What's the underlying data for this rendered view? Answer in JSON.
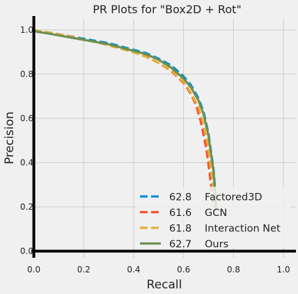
{
  "chart_data": {
    "type": "line",
    "title": "PR Plots for \"Box2D + Rot\"",
    "xlabel": "Recall",
    "ylabel": "Precision",
    "xlim": [
      -0.01,
      1.05
    ],
    "ylim": [
      -0.03,
      1.05
    ],
    "xticks": [
      "0.0",
      "0.2",
      "0.4",
      "0.6",
      "0.8",
      "1.0"
    ],
    "yticks": [
      "0.0",
      "0.2",
      "0.4",
      "0.6",
      "0.8",
      "1.0"
    ],
    "grid": true,
    "legend_position": "bottom-right",
    "series": [
      {
        "name": "Factored3D",
        "score": "62.8",
        "color": "#008fd5",
        "dash": "dashed",
        "points": [
          [
            0,
            0.995
          ],
          [
            0.02,
            0.99
          ],
          [
            0.05,
            0.99
          ],
          [
            0.1,
            0.98
          ],
          [
            0.15,
            0.97
          ],
          [
            0.2,
            0.96
          ],
          [
            0.25,
            0.95
          ],
          [
            0.3,
            0.94
          ],
          [
            0.35,
            0.925
          ],
          [
            0.4,
            0.91
          ],
          [
            0.45,
            0.895
          ],
          [
            0.5,
            0.87
          ],
          [
            0.55,
            0.84
          ],
          [
            0.6,
            0.79
          ],
          [
            0.63,
            0.75
          ],
          [
            0.66,
            0.69
          ],
          [
            0.68,
            0.63
          ],
          [
            0.7,
            0.53
          ],
          [
            0.71,
            0.45
          ],
          [
            0.72,
            0.37
          ],
          [
            0.725,
            0.3
          ],
          [
            0.73,
            0.2
          ]
        ]
      },
      {
        "name": "GCN",
        "score": "61.6",
        "color": "#fc4f30",
        "dash": "dashed",
        "points": [
          [
            0,
            0.998
          ],
          [
            0.02,
            0.995
          ],
          [
            0.05,
            0.99
          ],
          [
            0.1,
            0.98
          ],
          [
            0.15,
            0.97
          ],
          [
            0.2,
            0.955
          ],
          [
            0.25,
            0.945
          ],
          [
            0.3,
            0.93
          ],
          [
            0.35,
            0.915
          ],
          [
            0.4,
            0.9
          ],
          [
            0.45,
            0.88
          ],
          [
            0.5,
            0.85
          ],
          [
            0.55,
            0.815
          ],
          [
            0.6,
            0.76
          ],
          [
            0.63,
            0.71
          ],
          [
            0.65,
            0.66
          ],
          [
            0.67,
            0.58
          ],
          [
            0.69,
            0.47
          ],
          [
            0.7,
            0.39
          ],
          [
            0.71,
            0.3
          ],
          [
            0.72,
            0.2
          ]
        ]
      },
      {
        "name": "Interaction Net",
        "score": "61.8",
        "color": "#e5ae38",
        "dash": "dashed",
        "points": [
          [
            0,
            1.0
          ],
          [
            0.02,
            0.995
          ],
          [
            0.05,
            0.99
          ],
          [
            0.1,
            0.98
          ],
          [
            0.15,
            0.968
          ],
          [
            0.2,
            0.955
          ],
          [
            0.25,
            0.945
          ],
          [
            0.3,
            0.93
          ],
          [
            0.35,
            0.915
          ],
          [
            0.4,
            0.898
          ],
          [
            0.45,
            0.878
          ],
          [
            0.5,
            0.85
          ],
          [
            0.55,
            0.818
          ],
          [
            0.6,
            0.765
          ],
          [
            0.63,
            0.715
          ],
          [
            0.66,
            0.65
          ],
          [
            0.68,
            0.57
          ],
          [
            0.695,
            0.49
          ],
          [
            0.705,
            0.41
          ],
          [
            0.715,
            0.32
          ],
          [
            0.72,
            0.22
          ]
        ]
      },
      {
        "name": "Ours",
        "score": "62.7",
        "color": "#6d904f",
        "dash": "solid",
        "points": [
          [
            0,
            0.995
          ],
          [
            0.02,
            0.99
          ],
          [
            0.05,
            0.985
          ],
          [
            0.1,
            0.975
          ],
          [
            0.15,
            0.965
          ],
          [
            0.2,
            0.955
          ],
          [
            0.25,
            0.945
          ],
          [
            0.3,
            0.935
          ],
          [
            0.35,
            0.92
          ],
          [
            0.4,
            0.905
          ],
          [
            0.45,
            0.89
          ],
          [
            0.5,
            0.865
          ],
          [
            0.55,
            0.83
          ],
          [
            0.6,
            0.78
          ],
          [
            0.63,
            0.74
          ],
          [
            0.66,
            0.68
          ],
          [
            0.68,
            0.62
          ],
          [
            0.7,
            0.52
          ],
          [
            0.71,
            0.44
          ],
          [
            0.72,
            0.36
          ],
          [
            0.725,
            0.28
          ],
          [
            0.73,
            0.18
          ]
        ]
      }
    ]
  }
}
